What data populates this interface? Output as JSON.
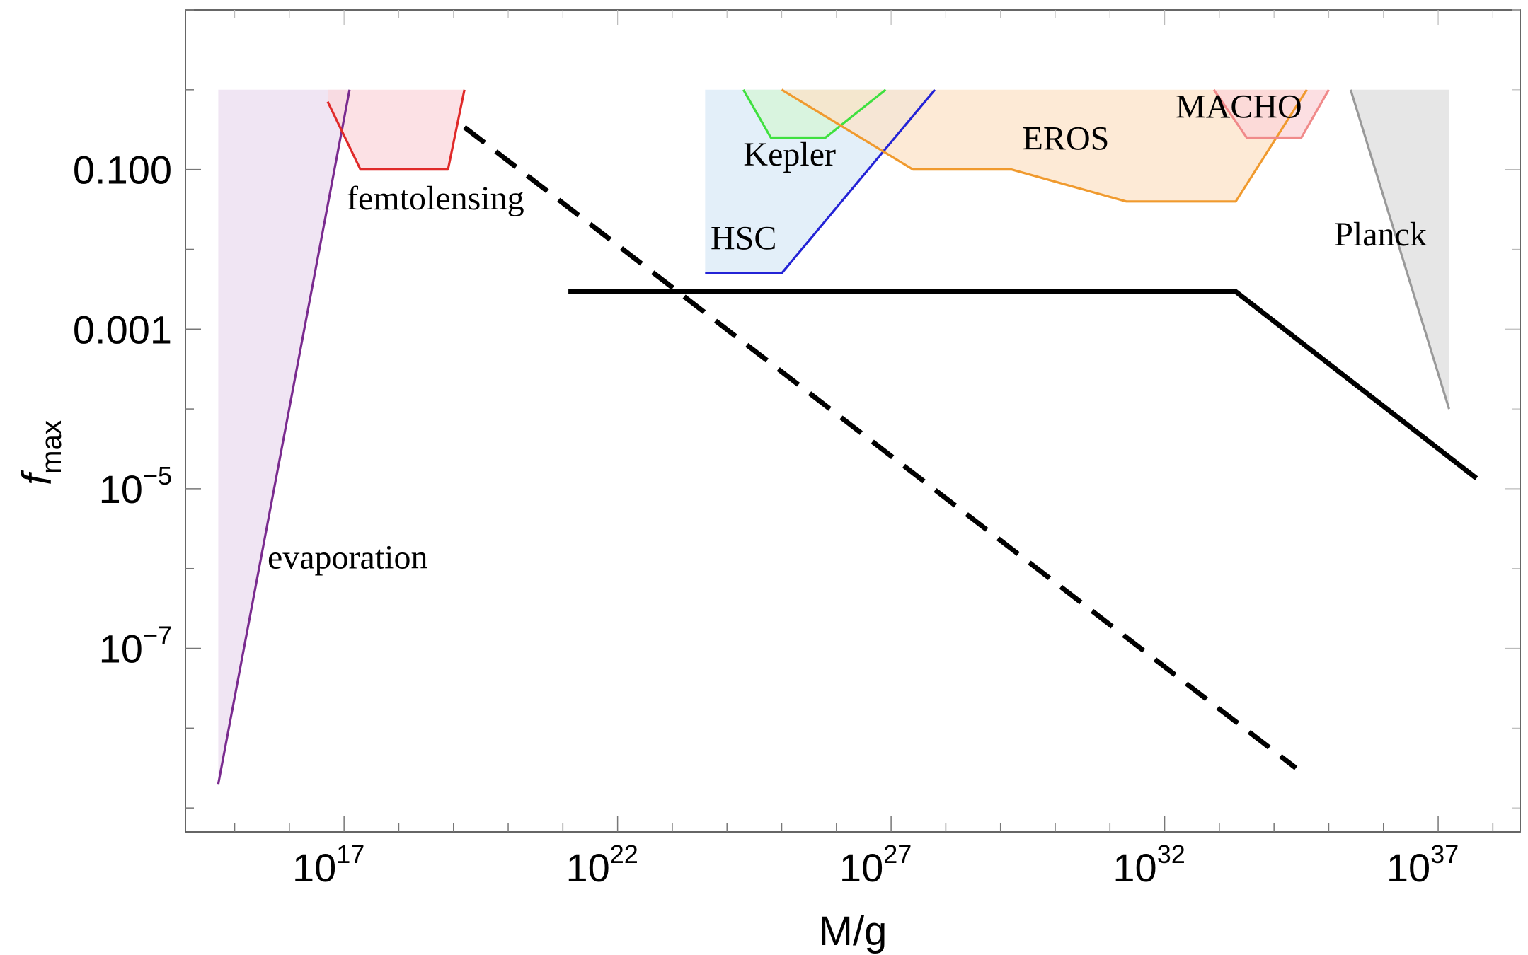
{
  "chart_data": {
    "type": "line",
    "title": "",
    "xlabel": "M/g",
    "ylabel_main": "f",
    "ylabel_sub": "max",
    "x_scale": "log10",
    "y_scale": "log10",
    "xlim_log10": [
      14.1,
      38.5
    ],
    "ylim_log10": [
      -9.3,
      1.0
    ],
    "grid": false,
    "x_ticks": [
      {
        "exp": 17,
        "base": "10",
        "sup": "17"
      },
      {
        "exp": 22,
        "base": "10",
        "sup": "22"
      },
      {
        "exp": 27,
        "base": "10",
        "sup": "27"
      },
      {
        "exp": 32,
        "base": "10",
        "sup": "32"
      },
      {
        "exp": 37,
        "base": "10",
        "sup": "37"
      }
    ],
    "y_ticks": [
      {
        "exp": -1,
        "text": "0.100"
      },
      {
        "exp": -3,
        "text": "0.001"
      },
      {
        "exp": -5,
        "base": "10",
        "sup": "−5"
      },
      {
        "exp": -7,
        "base": "10",
        "sup": "−7"
      }
    ],
    "constraints": [
      {
        "name": "evaporation",
        "label": "evaporation",
        "stroke": "#7a2b8f",
        "fill": "#ebdcef",
        "fill_points": [
          [
            14.7,
            -8.7
          ],
          [
            14.7,
            0
          ],
          [
            17.1,
            0
          ]
        ],
        "line_points": [
          [
            14.7,
            -8.7
          ],
          [
            17.1,
            0
          ]
        ],
        "label_at": [
          15.6,
          -6.0
        ]
      },
      {
        "name": "femtolensing",
        "label": "femtolensing",
        "stroke": "#e02a2a",
        "fill": "#fbd7dc",
        "fill_points": [
          [
            16.7,
            -0.15
          ],
          [
            17.3,
            -1.0
          ],
          [
            18.9,
            -1.0
          ],
          [
            19.2,
            0
          ],
          [
            16.7,
            0
          ]
        ],
        "line_points": [
          [
            16.7,
            -0.15
          ],
          [
            17.3,
            -1.0
          ],
          [
            18.9,
            -1.0
          ],
          [
            19.2,
            0
          ]
        ],
        "label_at": [
          17.05,
          -1.5
        ]
      },
      {
        "name": "HSC",
        "label": "HSC",
        "stroke": "#2323d6",
        "fill": "#d9e9f7",
        "fill_points": [
          [
            23.6,
            -2.3
          ],
          [
            25.0,
            -2.3
          ],
          [
            27.8,
            0
          ],
          [
            23.6,
            0
          ]
        ],
        "line_points": [
          [
            23.6,
            -2.3
          ],
          [
            25.0,
            -2.3
          ],
          [
            27.8,
            0
          ]
        ],
        "label_at": [
          23.7,
          -2.0
        ]
      },
      {
        "name": "Kepler",
        "label": "Kepler",
        "stroke": "#3fe03f",
        "fill": "#d6f5d6",
        "fill_points": [
          [
            24.3,
            0
          ],
          [
            24.8,
            -0.6
          ],
          [
            25.8,
            -0.6
          ],
          [
            26.9,
            0
          ]
        ],
        "line_points": [
          [
            24.3,
            0
          ],
          [
            24.8,
            -0.6
          ],
          [
            25.8,
            -0.6
          ],
          [
            26.9,
            0
          ]
        ],
        "label_at": [
          24.3,
          -0.95
        ]
      },
      {
        "name": "EROS",
        "label": "EROS",
        "stroke": "#f09a2e",
        "fill": "#fce3c8",
        "fill_points": [
          [
            25.0,
            0
          ],
          [
            27.4,
            -1.0
          ],
          [
            29.2,
            -1.0
          ],
          [
            31.3,
            -1.4
          ],
          [
            33.3,
            -1.4
          ],
          [
            34.6,
            0
          ]
        ],
        "line_points": [
          [
            25.0,
            0
          ],
          [
            27.4,
            -1.0
          ],
          [
            29.2,
            -1.0
          ],
          [
            31.3,
            -1.4
          ],
          [
            33.3,
            -1.4
          ],
          [
            34.6,
            0
          ]
        ],
        "label_at": [
          29.4,
          -0.75
        ]
      },
      {
        "name": "MACHO",
        "label": "MACHO",
        "stroke": "#f08a8a",
        "fill": "#fbd4d8",
        "fill_points": [
          [
            32.9,
            0
          ],
          [
            33.5,
            -0.6
          ],
          [
            34.5,
            -0.6
          ],
          [
            35.0,
            0
          ]
        ],
        "line_points": [
          [
            32.9,
            0
          ],
          [
            33.5,
            -0.6
          ],
          [
            34.5,
            -0.6
          ],
          [
            35.0,
            0
          ]
        ],
        "label_at": [
          32.2,
          -0.35
        ]
      },
      {
        "name": "Planck",
        "label": "Planck",
        "stroke": "#999999",
        "fill": "#dddddd",
        "fill_points": [
          [
            35.4,
            0
          ],
          [
            37.2,
            -4.0
          ],
          [
            37.2,
            0
          ]
        ],
        "line_points": [
          [
            35.4,
            0
          ],
          [
            37.2,
            -4.0
          ]
        ],
        "label_at": [
          35.1,
          -1.95
        ]
      }
    ],
    "series": [
      {
        "name": "solid-bound",
        "style": "solid",
        "color": "#000000",
        "points": [
          [
            21.1,
            -2.53
          ],
          [
            33.3,
            -2.53
          ],
          [
            37.7,
            -4.87
          ]
        ]
      },
      {
        "name": "dashed-bound",
        "style": "dashed",
        "color": "#000000",
        "points": [
          [
            19.2,
            -0.47
          ],
          [
            34.4,
            -8.5
          ]
        ]
      }
    ]
  }
}
